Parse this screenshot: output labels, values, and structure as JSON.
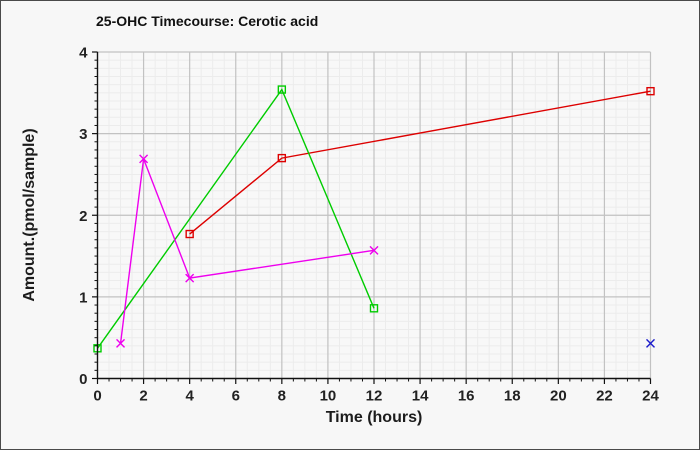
{
  "window": {
    "background": "#f7f7f7",
    "border_color": "#4a4a4a"
  },
  "chart_data": {
    "type": "line",
    "title": "25-OHC Timecourse: Cerotic acid",
    "xlabel": "Time (hours)",
    "ylabel": "Amount.(pmol/sample)",
    "xlim": [
      0,
      24
    ],
    "ylim": [
      0,
      4
    ],
    "x_major_ticks": [
      0,
      2,
      4,
      6,
      8,
      10,
      12,
      14,
      16,
      18,
      20,
      22,
      24
    ],
    "y_major_ticks": [
      0,
      1,
      2,
      3,
      4
    ],
    "x_minor_step": 0.5,
    "y_minor_step": 0.1,
    "grid": "on",
    "legend_position": "none",
    "plot_bg_color": "#f8f8f8",
    "grid_minor_color": "#ececec",
    "grid_major_color": "#c2c2c2",
    "axis_color": "#111111",
    "series": [
      {
        "name": "red-squares",
        "color": "#dd0000",
        "marker": "square",
        "x": [
          4,
          8,
          24
        ],
        "y": [
          1.77,
          2.7,
          3.52
        ]
      },
      {
        "name": "green-squares",
        "color": "#00cc00",
        "marker": "square",
        "x": [
          0,
          8,
          12
        ],
        "y": [
          0.37,
          3.54,
          0.86
        ]
      },
      {
        "name": "magenta-crosses",
        "color": "#ee00ee",
        "marker": "x",
        "x": [
          1,
          2,
          4,
          12
        ],
        "y": [
          0.43,
          2.69,
          1.23,
          1.57
        ]
      },
      {
        "name": "blue-crosses",
        "color": "#1a1acc",
        "marker": "x",
        "x": [
          24
        ],
        "y": [
          0.43
        ]
      }
    ]
  }
}
